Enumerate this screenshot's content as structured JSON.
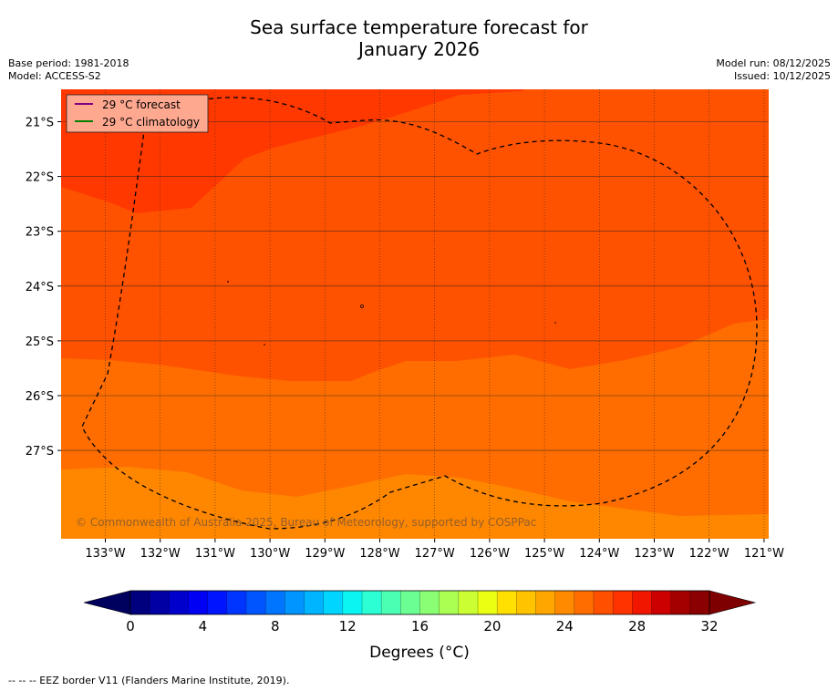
{
  "title": {
    "line1": "Sea surface temperature forecast for",
    "line2": "January 2026"
  },
  "meta_left": {
    "base_period": "Base period: 1981-2018",
    "model": "Model: ACCESS-S2"
  },
  "meta_right": {
    "model_run": "Model run: 08/12/2025",
    "issued": "Issued: 10/12/2025"
  },
  "legend": {
    "forecast_label": "29 °C  forecast",
    "climatology_label": "29 °C  climatology",
    "forecast_color": "#800080",
    "climatology_color": "#008000"
  },
  "map": {
    "lat_labels": [
      "21°S",
      "22°S",
      "23°S",
      "24°S",
      "25°S",
      "26°S",
      "27°S"
    ],
    "lon_labels": [
      "133°W",
      "132°W",
      "131°W",
      "130°W",
      "129°W",
      "128°W",
      "127°W",
      "126°W",
      "125°W",
      "124°W",
      "123°W",
      "122°W",
      "121°W"
    ],
    "watermark": "© Commonwealth of Australia 2025, Bureau of Meteorology, supported by COSPPac",
    "band_colors": {
      "above_29": "#ff3800",
      "t28_29": "#ff5200",
      "t27_28": "#ff6d00",
      "t26_27": "#ff8700"
    }
  },
  "colorbar": {
    "ticks": [
      "0",
      "4",
      "8",
      "12",
      "16",
      "20",
      "24",
      "28",
      "32"
    ],
    "label": "Degrees (°C)",
    "colors": [
      "#00007f",
      "#0000a5",
      "#0000cc",
      "#0000f2",
      "#0015ff",
      "#0035ff",
      "#0055ff",
      "#0075ff",
      "#0095ff",
      "#00b5ff",
      "#00d5ff",
      "#0bf5f3",
      "#2bffd3",
      "#4bffb3",
      "#6bff93",
      "#8bff73",
      "#abff53",
      "#cbff33",
      "#ebff13",
      "#ffe000",
      "#ffc300",
      "#ffa600",
      "#ff8a00",
      "#ff6d00",
      "#ff5000",
      "#ff3300",
      "#f01600",
      "#cc0000",
      "#a50000",
      "#8b0000"
    ],
    "under_color": "#00005f",
    "over_color": "#7f0000"
  },
  "footer": "--  --  -- EEZ border V11 (Flanders Marine Institute, 2019)."
}
